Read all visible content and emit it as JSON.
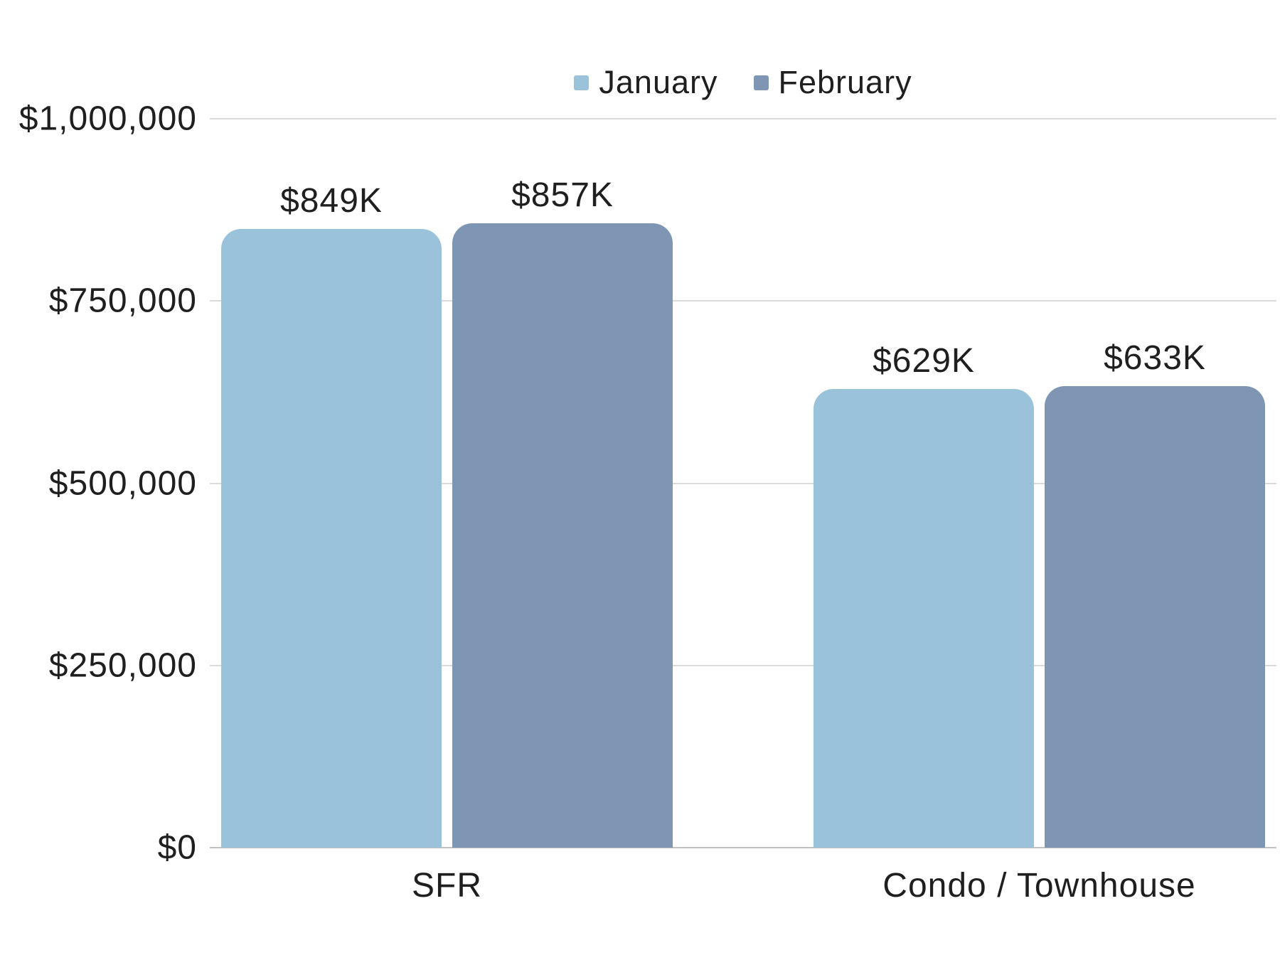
{
  "chart_data": {
    "type": "bar",
    "title": "",
    "categories": [
      "SFR",
      "Condo / Townhouse"
    ],
    "series": [
      {
        "name": "January",
        "color": "#9AC2DA",
        "values": [
          849000,
          629000
        ],
        "value_labels": [
          "$849K",
          "$629K"
        ]
      },
      {
        "name": "February",
        "color": "#7E96B4",
        "values": [
          857000,
          633000
        ],
        "value_labels": [
          "$857K",
          "$633K"
        ]
      }
    ],
    "ylim": [
      0,
      1000000
    ],
    "y_ticks": [
      {
        "value": 1000000,
        "label": "$1,000,000"
      },
      {
        "value": 750000,
        "label": "$750,000"
      },
      {
        "value": 500000,
        "label": "$500,000"
      },
      {
        "value": 250000,
        "label": "$250,000"
      },
      {
        "value": 0,
        "label": "$0"
      }
    ],
    "grid": true,
    "legend_position": "top",
    "colors": {
      "background": "#ffffff",
      "gridline": "#dbdbdb",
      "axis_line": "#c2c2c2",
      "text": "#1f1f1f"
    }
  }
}
